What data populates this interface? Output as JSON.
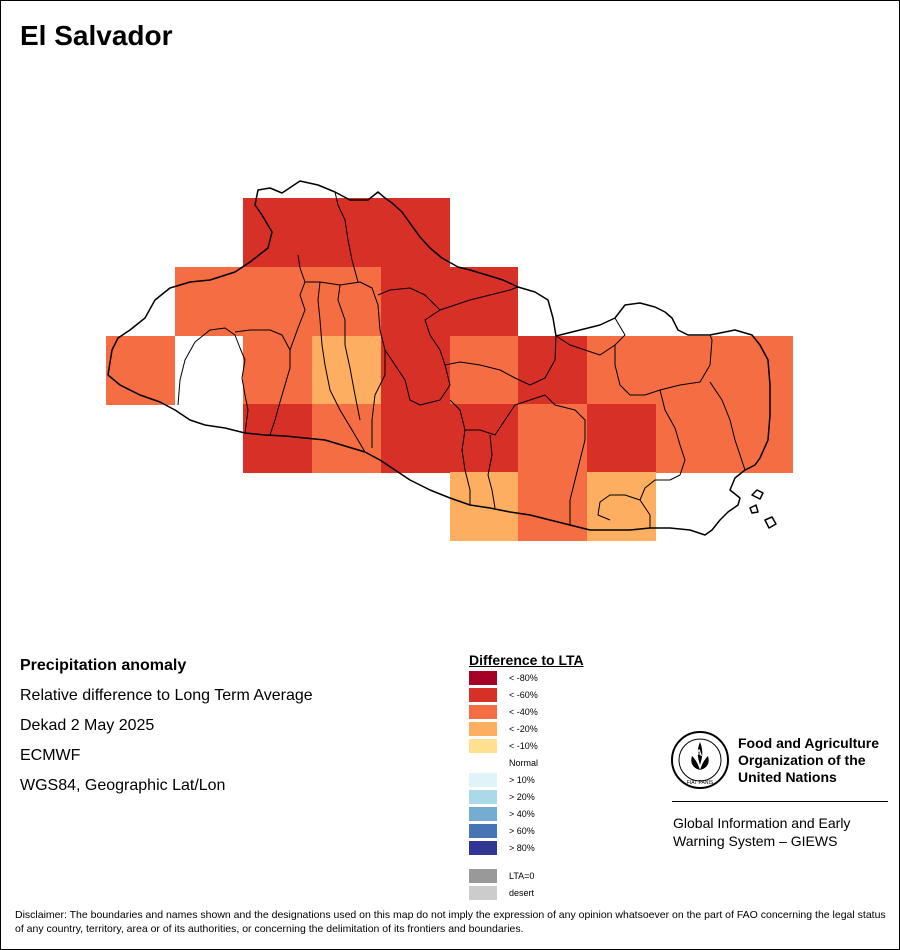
{
  "map_title": "El Salvador",
  "info": {
    "line1": "Precipitation anomaly",
    "line2": "Relative difference to Long Term Average",
    "line3": "Dekad 2 May 2025",
    "line4": "ECMWF",
    "line5": "WGS84, Geographic Lat/Lon"
  },
  "legend": {
    "title": "Difference to LTA",
    "items": [
      {
        "label": "< -80%",
        "color": "#A50026"
      },
      {
        "label": "< -60%",
        "color": "#D73027"
      },
      {
        "label": "< -40%",
        "color": "#F46D43"
      },
      {
        "label": "< -20%",
        "color": "#FDAE61"
      },
      {
        "label": "< -10%",
        "color": "#FEE090"
      },
      {
        "label": "Normal",
        "color": "#FFFFFF"
      },
      {
        "label": "> 10%",
        "color": "#E0F3F8"
      },
      {
        "label": "> 20%",
        "color": "#ABD9E9"
      },
      {
        "label": "> 40%",
        "color": "#74ADD1"
      },
      {
        "label": "> 60%",
        "color": "#4575B4"
      },
      {
        "label": "> 80%",
        "color": "#313695"
      },
      {
        "label": "LTA=0",
        "color": "#999999"
      },
      {
        "label": "desert",
        "color": "#CCCCCC"
      }
    ]
  },
  "organization": {
    "name": "Food and Agriculture Organization of the United Nations",
    "logo_letters": "FAO",
    "motto": "FIAT PANIS",
    "program": "Global Information and Early Warning System – GIEWS"
  },
  "disclaimer": "Disclaimer: The boundaries and names shown and the designations used on this map do not imply the expression of any opinion whatsoever on the part of FAO concerning the legal status of any country, territory, area or of its authorities, or concerning the delimitation of its frontiers and boundaries."
}
